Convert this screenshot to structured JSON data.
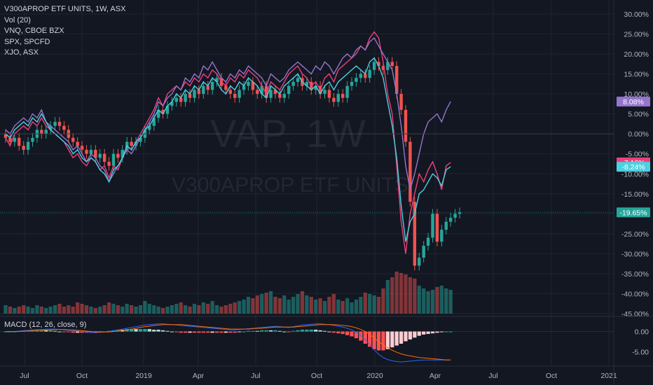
{
  "header": {
    "title": "V300APROP ETF UNITS, 1W, ASX",
    "volume_label": "Vol (20)",
    "compare_1": "VNQ, CBOE BZX",
    "compare_2": "SPX, SPCFD",
    "compare_3": "XJO, ASX"
  },
  "watermark": {
    "symbol": "VAP, 1W",
    "name": "V300APROP ETF UNITS"
  },
  "macd_label": "MACD (12, 26, close, 9)",
  "colors": {
    "background": "#131722",
    "up": "#26a69a",
    "down": "#ef5350",
    "vnq": "#ec407a",
    "spx": "#9575cd",
    "xjo": "#4dd0e1",
    "macd_line": "#2962ff",
    "signal_line": "#ff6d00",
    "hist_up_strong": "#26a69a",
    "hist_up_weak": "#b2dfdb",
    "hist_down_strong": "#ff5252",
    "hist_down_weak": "#ffcdd2"
  },
  "chart_data": {
    "type": "candlestick",
    "x_axis": {
      "ticks": [
        "Jul",
        "Oct",
        "2019",
        "Apr",
        "Jul",
        "Oct",
        "2020",
        "Apr",
        "Jul",
        "Oct",
        "2021"
      ]
    },
    "y_axis": {
      "unit": "%",
      "ylim": [
        -45,
        30
      ],
      "ticks": [
        "30.00%",
        "25.00%",
        "20.00%",
        "15.00%",
        "10.00%",
        "5.00%",
        "0.00%",
        "-5.00%",
        "-10.00%",
        "-15.00%",
        "-20.00%",
        "-25.00%",
        "-30.00%",
        "-35.00%",
        "-40.00%",
        "-45.00%"
      ]
    },
    "price_labels": [
      {
        "series": "SPX, SPCFD",
        "text": "8.08%",
        "value": 8.08,
        "color": "#9575cd"
      },
      {
        "series": "VNQ, CBOE BZX",
        "text": "-7.16%",
        "value": -7.16,
        "color": "#ec407a"
      },
      {
        "series": "XJO, ASX",
        "text": "-8.24%",
        "value": -8.24,
        "color": "#4dd0e1"
      },
      {
        "series": "V300APROP ETF UNITS",
        "text": "-19.65%",
        "value": -19.65,
        "color": "#26a69a"
      }
    ],
    "candles_pct_close": [
      -1,
      -2,
      -1,
      -3,
      -4,
      -2,
      -1,
      1,
      0,
      1,
      2,
      3,
      2,
      1,
      -1,
      -2,
      -3,
      -4,
      -5,
      -4,
      -6,
      -5,
      -7,
      -8,
      -5,
      -6,
      -4,
      -2,
      -3,
      -2,
      -1,
      1,
      2,
      4,
      6,
      5,
      7,
      8,
      9,
      8,
      10,
      9,
      11,
      10,
      12,
      11,
      13,
      14,
      12,
      11,
      10,
      9,
      11,
      12,
      13,
      11,
      10,
      12,
      9,
      11,
      10,
      9,
      10,
      12,
      13,
      14,
      12,
      13,
      11,
      12,
      10,
      11,
      9,
      8,
      10,
      9,
      12,
      13,
      14,
      15,
      14,
      16,
      18,
      17,
      16,
      18,
      17,
      10,
      6,
      -2,
      -17,
      -33,
      -31,
      -28,
      -26,
      -20,
      -27,
      -24,
      -22,
      -21,
      -20,
      -19.65
    ],
    "series": [
      {
        "name": "VNQ, CBOE BZX",
        "values": [
          -1,
          -3,
          0,
          1,
          2,
          1,
          3,
          2,
          4,
          2,
          1,
          0,
          -1,
          -2,
          -4,
          -6,
          -5,
          -7,
          -8,
          -6,
          -7,
          -9,
          -8,
          -11,
          -8,
          -9,
          -6,
          -3,
          -4,
          -2,
          0,
          2,
          4,
          6,
          9,
          7,
          10,
          11,
          12,
          11,
          13,
          12,
          14,
          13,
          15,
          14,
          16,
          15,
          13,
          12,
          14,
          13,
          15,
          14,
          16,
          15,
          14,
          12,
          10,
          13,
          12,
          11,
          13,
          15,
          16,
          17,
          15,
          14,
          12,
          13,
          11,
          14,
          15,
          13,
          16,
          17,
          18,
          19,
          20,
          22,
          21,
          24,
          25.5,
          24,
          18,
          10,
          5,
          -8,
          -22,
          -30,
          -20,
          -15,
          -10,
          -12,
          -9,
          -7,
          -10,
          -14,
          -8,
          -7.16
        ]
      },
      {
        "name": "SPX, SPCFD",
        "values": [
          1,
          0,
          2,
          3,
          4,
          3,
          5,
          4,
          6,
          3,
          2,
          1,
          0,
          -1,
          -2,
          -4,
          -3,
          -5,
          -7,
          -5,
          -6,
          -8,
          -9,
          -12,
          -10,
          -8,
          -6,
          -4,
          -5,
          -3,
          -1,
          1,
          3,
          5,
          8,
          7,
          9,
          10,
          12,
          11,
          14,
          13,
          15,
          14,
          17,
          16,
          18,
          16,
          14,
          13,
          15,
          14,
          16,
          15,
          17,
          16,
          15,
          14,
          12,
          15,
          14,
          13,
          14,
          16,
          17,
          18,
          17,
          16,
          15,
          17,
          16,
          18,
          17,
          15,
          17,
          19,
          20,
          19,
          21,
          22,
          21,
          23,
          24,
          22,
          20,
          18,
          16,
          10,
          2,
          -8,
          -14,
          -10,
          -5,
          0,
          3,
          4,
          5,
          3,
          6,
          8.08
        ]
      },
      {
        "name": "XJO, ASX",
        "values": [
          0,
          -1,
          1,
          2,
          3,
          2,
          4,
          3,
          5,
          3,
          1,
          0,
          -1,
          -2,
          -3,
          -5,
          -4,
          -6,
          -7,
          -6,
          -7,
          -9,
          -10,
          -12,
          -9,
          -8,
          -6,
          -3,
          -4,
          -2,
          -1,
          1,
          2,
          4,
          6,
          5,
          7,
          8,
          10,
          9,
          11,
          10,
          12,
          11,
          13,
          12,
          14,
          13,
          11,
          10,
          12,
          11,
          13,
          12,
          14,
          13,
          12,
          10,
          9,
          12,
          11,
          10,
          12,
          13,
          14,
          15,
          13,
          12,
          11,
          12,
          10,
          12,
          13,
          11,
          13,
          14,
          15,
          16,
          17,
          16,
          15,
          18,
          19,
          17,
          14,
          8,
          2,
          -6,
          -18,
          -27,
          -22,
          -20,
          -15,
          -14,
          -12,
          -10,
          -11,
          -13,
          -9,
          -8.24
        ]
      },
      {
        "name": "Vol (20)",
        "values": [
          6,
          5,
          4,
          5,
          6,
          5,
          4,
          6,
          5,
          4,
          5,
          6,
          7,
          5,
          6,
          5,
          8,
          7,
          6,
          5,
          4,
          5,
          6,
          8,
          7,
          6,
          5,
          7,
          6,
          5,
          6,
          9,
          7,
          6,
          5,
          4,
          5,
          6,
          7,
          8,
          6,
          5,
          7,
          6,
          8,
          7,
          9,
          6,
          5,
          6,
          7,
          8,
          9,
          10,
          12,
          11,
          13,
          14,
          15,
          16,
          12,
          11,
          13,
          10,
          12,
          14,
          16,
          13,
          12,
          10,
          11,
          9,
          12,
          14,
          10,
          9,
          11,
          8,
          10,
          12,
          15,
          14,
          13,
          12,
          18,
          24,
          26,
          30,
          29,
          28,
          26,
          25,
          20,
          18,
          16,
          17,
          19,
          20,
          18,
          17
        ]
      },
      {
        "name": "MACD (12, 26, close, 9)",
        "values": [
          0,
          0,
          0,
          0.1,
          0.2,
          0.3,
          0.4,
          0.5,
          0.5,
          0.6,
          0.6,
          0.6,
          0.5,
          0.4,
          0.3,
          0.2,
          0.1,
          0,
          -0.1,
          -0.2,
          -0.3,
          -0.2,
          -0.1,
          0,
          0.2,
          0.4,
          0.6,
          0.8,
          1,
          1.2,
          1.4,
          1.6,
          1.7,
          1.8,
          1.9,
          1.9,
          1.8,
          1.7,
          1.6,
          1.5,
          1.4,
          1.3,
          1.2,
          1.1,
          1,
          0.9,
          0.8,
          0.7,
          0.6,
          0.5,
          0.4,
          0.4,
          0.5,
          0.6,
          0.7,
          0.8,
          0.9,
          1,
          1.1,
          1.2,
          1.3,
          1.2,
          1.1,
          1,
          1.2,
          1.4,
          1.6,
          1.7,
          1.8,
          1.9,
          1.9,
          1.8,
          1.7,
          1.5,
          1.3,
          1.1,
          0.8,
          0.4,
          -0.2,
          -1,
          -2,
          -3.2,
          -4.5,
          -5.6,
          -6.4,
          -6.9,
          -7.2,
          -7.4,
          -7.5,
          -7.4,
          -7.3,
          -7.2,
          -7.1,
          -7.0,
          -7.0,
          -7.0,
          -7.0,
          -7.0,
          -7.0,
          -7.0
        ]
      },
      {
        "name": "Signal",
        "values": [
          0,
          0,
          0,
          0,
          0.1,
          0.1,
          0.2,
          0.3,
          0.3,
          0.4,
          0.4,
          0.5,
          0.5,
          0.5,
          0.4,
          0.4,
          0.3,
          0.2,
          0.1,
          0,
          -0.1,
          -0.1,
          -0.1,
          -0.1,
          0,
          0.1,
          0.3,
          0.4,
          0.6,
          0.8,
          1,
          1.2,
          1.3,
          1.5,
          1.6,
          1.7,
          1.7,
          1.7,
          1.7,
          1.7,
          1.6,
          1.5,
          1.4,
          1.3,
          1.2,
          1.1,
          1,
          0.9,
          0.8,
          0.7,
          0.6,
          0.6,
          0.6,
          0.6,
          0.6,
          0.7,
          0.8,
          0.8,
          0.9,
          1,
          1.1,
          1.1,
          1.1,
          1.1,
          1.1,
          1.2,
          1.3,
          1.4,
          1.5,
          1.6,
          1.7,
          1.7,
          1.7,
          1.7,
          1.6,
          1.5,
          1.4,
          1.2,
          0.9,
          0.5,
          0,
          -0.7,
          -1.6,
          -2.5,
          -3.3,
          -4.0,
          -4.6,
          -5.1,
          -5.5,
          -5.8,
          -6.0,
          -6.2,
          -6.4,
          -6.5,
          -6.6,
          -6.7,
          -6.8,
          -6.9,
          -7.0,
          -7.0
        ]
      }
    ],
    "macd_axis": {
      "ticks": [
        "0.00",
        "-5.00"
      ],
      "ylim": [
        -8,
        2
      ]
    },
    "grid": true,
    "legend_position": "top-left"
  }
}
